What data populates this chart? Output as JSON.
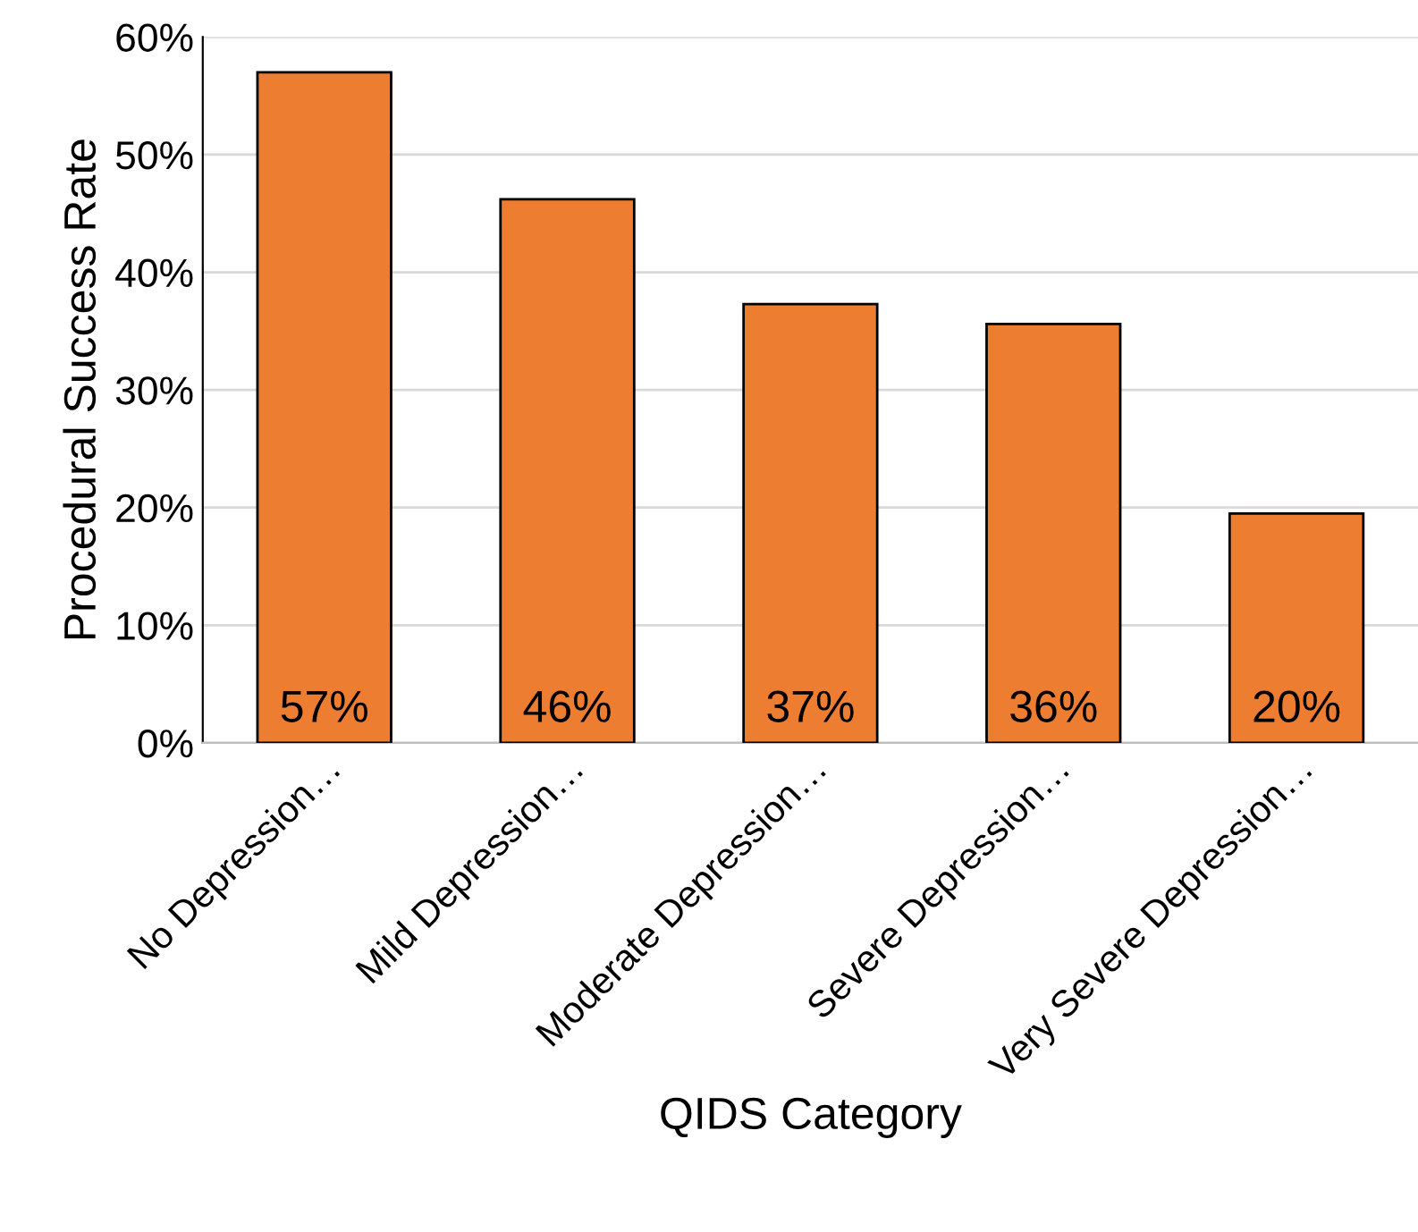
{
  "chart_data": {
    "type": "bar",
    "xlabel": "QIDS Category",
    "ylabel": "Procedural Success Rate",
    "categories": [
      "No Depression…",
      "Mild Depression…",
      "Moderate Depression…",
      "Severe Depression…",
      "Very Severe Depression…"
    ],
    "values": [
      57,
      46.2,
      37.3,
      35.6,
      19.5
    ],
    "value_labels": [
      "57%",
      "46%",
      "37%",
      "36%",
      "20%"
    ],
    "color": "#ed7d31",
    "ylim": [
      0,
      60
    ],
    "yticks": [
      {
        "value": 0,
        "label": "0%"
      },
      {
        "value": 10,
        "label": "10%"
      },
      {
        "value": 20,
        "label": "20%"
      },
      {
        "value": 30,
        "label": "30%"
      },
      {
        "value": 40,
        "label": "40%"
      },
      {
        "value": 50,
        "label": "50%"
      },
      {
        "value": 60,
        "label": "60%"
      }
    ],
    "grid": "y",
    "legend": false
  }
}
